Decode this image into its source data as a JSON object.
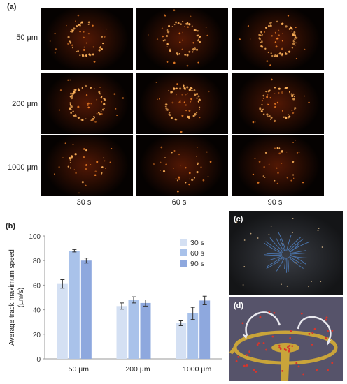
{
  "figure": {
    "panel_labels": {
      "a": "(a)",
      "b": "(b)",
      "c": "(c)",
      "d": "(d)"
    },
    "row_labels": [
      "50 µm",
      "200 µm",
      "1000 µm"
    ],
    "col_labels": [
      "30 s",
      "60 s",
      "90 s"
    ],
    "micrograph_ring_intensity": [
      [
        0.55,
        0.8,
        0.95
      ],
      [
        0.9,
        0.85,
        0.7
      ],
      [
        0.25,
        0.2,
        0.15
      ]
    ],
    "colors": {
      "micrograph_background": "#050201",
      "particle": "#ff8a2a",
      "glow": "#5a1a05",
      "electrode_gold": "#c9a43a",
      "substrate": "#56536a"
    }
  },
  "chart_data": {
    "type": "bar",
    "categories": [
      "50 µm",
      "200 µm",
      "1000 µm"
    ],
    "series": [
      {
        "name": "30 s",
        "values": [
          61,
          43,
          29
        ],
        "errors": [
          3.5,
          2.5,
          2.0
        ],
        "color": "#d4e0f3"
      },
      {
        "name": "60 s",
        "values": [
          88,
          48,
          37
        ],
        "errors": [
          1.0,
          2.5,
          5.0
        ],
        "color": "#a9c2ea"
      },
      {
        "name": "90 s",
        "values": [
          80,
          45.5,
          47.5
        ],
        "errors": [
          2.0,
          2.5,
          3.5
        ],
        "color": "#8ea8de"
      }
    ],
    "ylabel_lines": [
      "Average track maximum speed",
      "(µm/s)"
    ],
    "ylim": [
      0,
      100
    ],
    "yticks": [
      0,
      20,
      40,
      60,
      80,
      100
    ],
    "legend_position": "top-right",
    "grid": false
  }
}
